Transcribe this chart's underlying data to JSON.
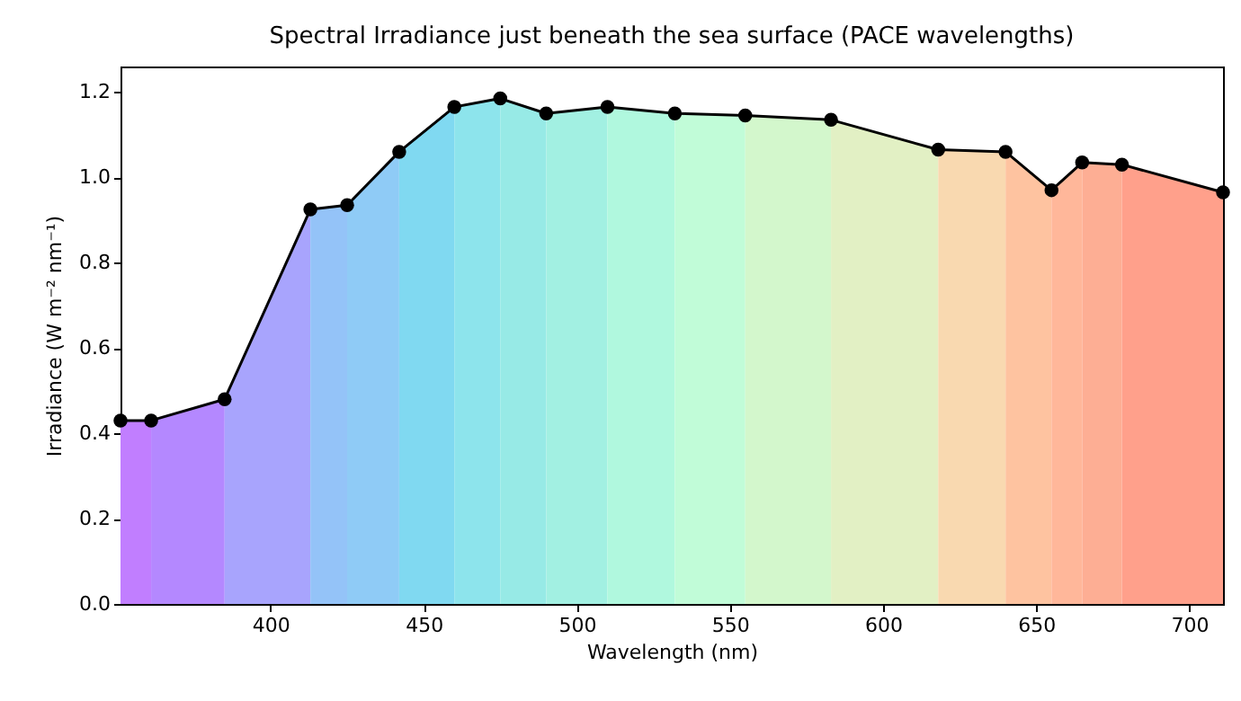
{
  "chart_data": {
    "type": "line",
    "title": "Spectral Irradiance just beneath the sea surface (PACE wavelengths)",
    "xlabel": "Wavelength (nm)",
    "ylabel": "Irradiance (W m⁻² nm⁻¹)",
    "x": [
      351,
      361,
      385,
      413,
      425,
      442,
      460,
      475,
      490,
      510,
      532,
      555,
      583,
      618,
      640,
      655,
      665,
      678,
      711
    ],
    "xlim": [
      351,
      711
    ],
    "xticks": [
      400,
      450,
      500,
      550,
      600,
      650,
      700
    ],
    "ylim": [
      0,
      1.26
    ],
    "yticks": [
      {
        "value": 0,
        "label": "0.0"
      },
      {
        "value": 0.2,
        "label": "0.2"
      },
      {
        "value": 0.4,
        "label": "0.4"
      },
      {
        "value": 0.6,
        "label": "0.6"
      },
      {
        "value": 0.8,
        "label": "0.8"
      },
      {
        "value": 1,
        "label": "1.0"
      },
      {
        "value": 1.2,
        "label": "1.2"
      }
    ],
    "grid": false,
    "line_style": "solid",
    "series": [
      {
        "type": "area",
        "color": "#c17eff",
        "x": [
          351,
          361
        ],
        "values": [
          0.43,
          0.43
        ]
      },
      {
        "type": "area",
        "color": "#b488ff",
        "x": [
          361,
          385
        ],
        "values": [
          0.43,
          0.48
        ]
      },
      {
        "type": "area",
        "color": "#a8a4fd",
        "x": [
          385,
          413
        ],
        "values": [
          0.48,
          0.925
        ]
      },
      {
        "type": "area",
        "color": "#94c3f8",
        "x": [
          413,
          425
        ],
        "values": [
          0.925,
          0.935
        ]
      },
      {
        "type": "area",
        "color": "#8fcbf6",
        "x": [
          425,
          442
        ],
        "values": [
          0.935,
          1.06
        ]
      },
      {
        "type": "area",
        "color": "#80d9f1",
        "x": [
          442,
          460
        ],
        "values": [
          1.06,
          1.165
        ]
      },
      {
        "type": "area",
        "color": "#8de4ec",
        "x": [
          460,
          475
        ],
        "values": [
          1.165,
          1.185
        ]
      },
      {
        "type": "area",
        "color": "#97eae6",
        "x": [
          475,
          490
        ],
        "values": [
          1.185,
          1.15
        ]
      },
      {
        "type": "area",
        "color": "#a2f0e2",
        "x": [
          490,
          510
        ],
        "values": [
          1.15,
          1.165
        ]
      },
      {
        "type": "area",
        "color": "#b0f8de",
        "x": [
          510,
          532
        ],
        "values": [
          1.165,
          1.15
        ]
      },
      {
        "type": "area",
        "color": "#c1fcd8",
        "x": [
          532,
          555
        ],
        "values": [
          1.15,
          1.145
        ]
      },
      {
        "type": "area",
        "color": "#d3f7cc",
        "x": [
          555,
          583
        ],
        "values": [
          1.145,
          1.135
        ]
      },
      {
        "type": "area",
        "color": "#e2f0c4",
        "x": [
          583,
          618
        ],
        "values": [
          1.135,
          1.065
        ]
      },
      {
        "type": "area",
        "color": "#f9d9b0",
        "x": [
          618,
          640
        ],
        "values": [
          1.065,
          1.06
        ]
      },
      {
        "type": "area",
        "color": "#fec3a0",
        "x": [
          640,
          655
        ],
        "values": [
          1.06,
          0.97
        ]
      },
      {
        "type": "area",
        "color": "#ffb79a",
        "x": [
          655,
          665
        ],
        "values": [
          0.97,
          1.035
        ]
      },
      {
        "type": "area",
        "color": "#fdae94",
        "x": [
          665,
          678
        ],
        "values": [
          1.035,
          1.03
        ]
      },
      {
        "type": "area",
        "color": "#ffa08b",
        "x": [
          678,
          711
        ],
        "values": [
          1.03,
          0.965
        ]
      },
      {
        "color": "#000000",
        "marker": "circle",
        "values": [
          0.43,
          0.43,
          0.48,
          0.925,
          0.935,
          1.06,
          1.165,
          1.185,
          1.15,
          1.165,
          1.15,
          1.145,
          1.135,
          1.065,
          1.06,
          0.97,
          1.035,
          1.03,
          0.965
        ]
      }
    ]
  }
}
